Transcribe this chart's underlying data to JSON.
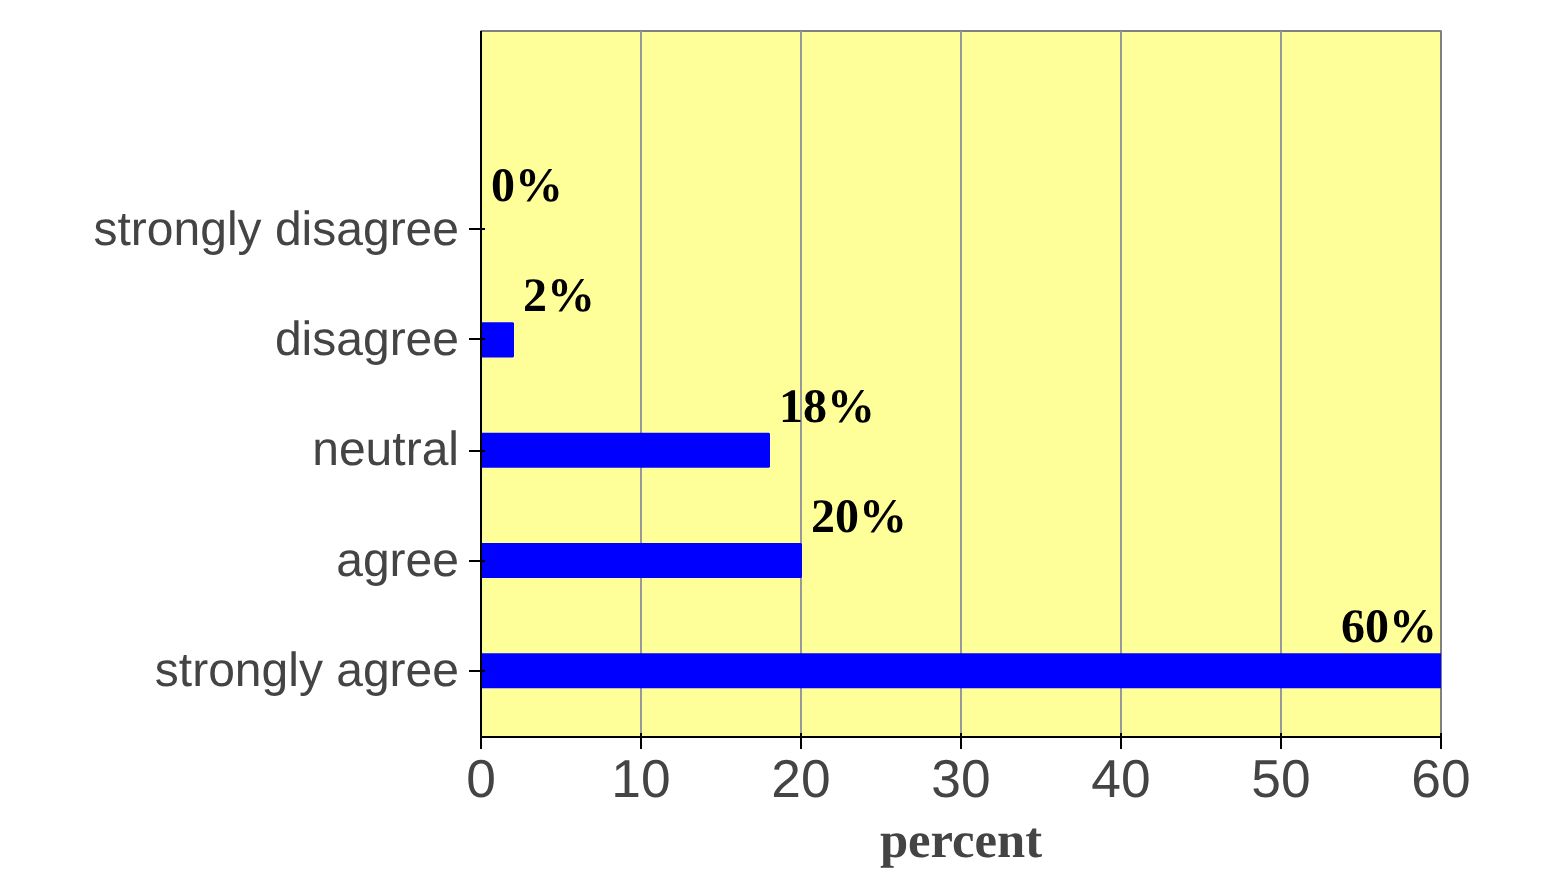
{
  "chart_data": {
    "type": "bar",
    "orientation": "horizontal",
    "categories": [
      "strongly disagree",
      "disagree",
      "neutral",
      "agree",
      "strongly agree"
    ],
    "values": [
      0,
      2,
      18,
      20,
      60
    ],
    "value_labels": [
      "0%",
      "2%",
      "18%",
      "20%",
      "60%"
    ],
    "color": "#0000ff",
    "xlabel": "percent",
    "xlim": [
      0,
      60
    ],
    "xticks": [
      0,
      10,
      20,
      30,
      40,
      50,
      60
    ],
    "grid": "x"
  }
}
